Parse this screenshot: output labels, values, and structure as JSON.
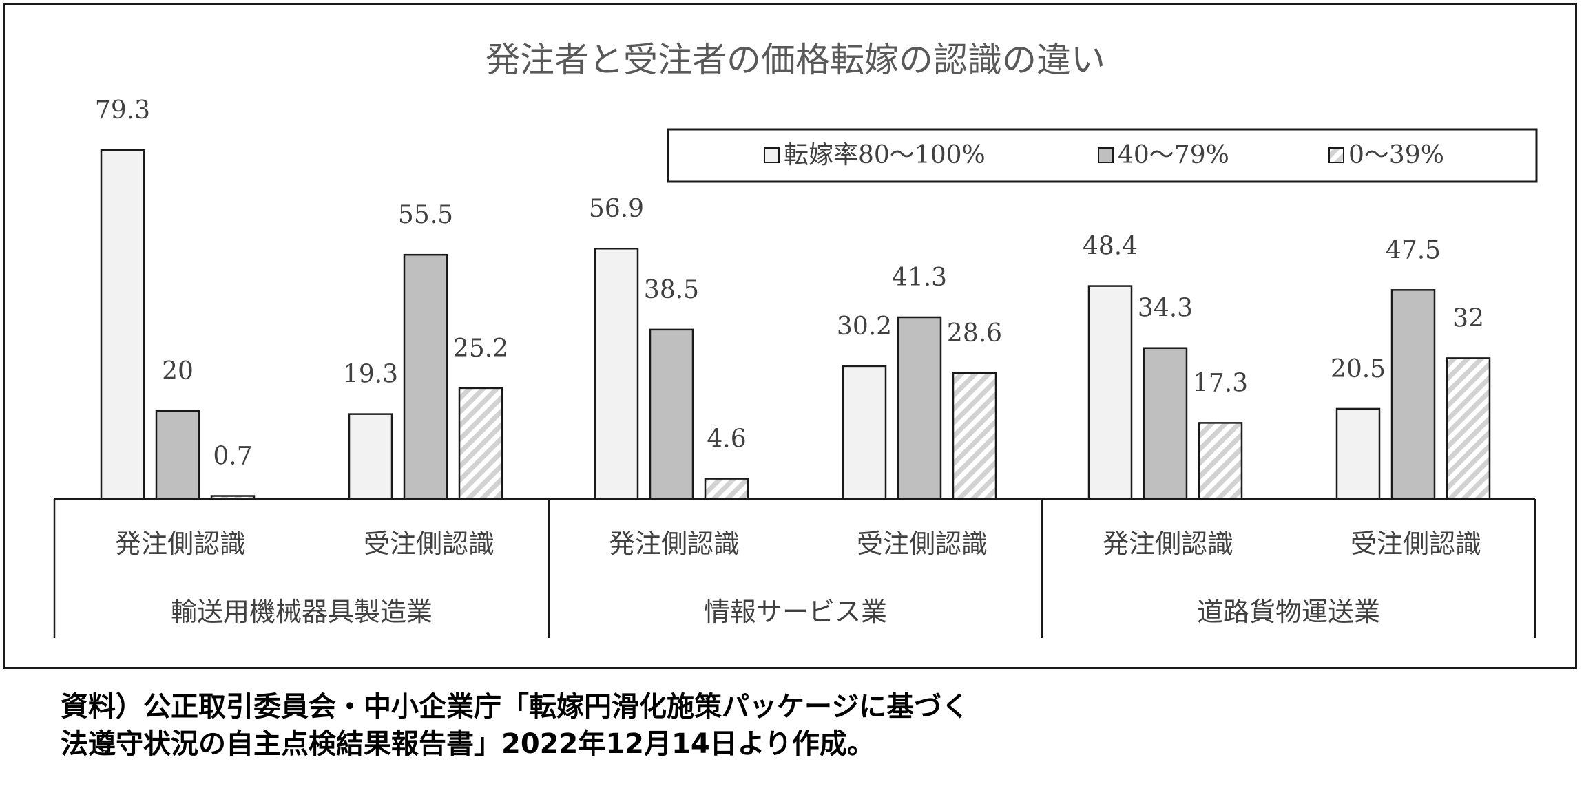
{
  "chart_data": {
    "type": "bar",
    "title": "発注者と受注者の価格転嫁の認識の違い",
    "legend_position": "top-right",
    "grid": false,
    "ylim": [
      0,
      85
    ],
    "legend": [
      {
        "label": "転嫁率80～100%",
        "color": "#f2f2f2",
        "pattern": "none"
      },
      {
        "label": "40～79%",
        "color": "#bfbfbf",
        "pattern": "none"
      },
      {
        "label": "0～39%",
        "color": "#ffffff",
        "pattern": "diagonal-hatch"
      }
    ],
    "groups": [
      {
        "industry": "輸送用機械器具製造業",
        "categories": [
          {
            "label": "発注側認識",
            "values": [
              79.3,
              20,
              0.7
            ],
            "value_labels": [
              "79.3",
              "20",
              "0.7"
            ]
          },
          {
            "label": "受注側認識",
            "values": [
              19.3,
              55.5,
              25.2
            ],
            "value_labels": [
              "19.3",
              "55.5",
              "25.2"
            ]
          }
        ]
      },
      {
        "industry": "情報サービス業",
        "categories": [
          {
            "label": "発注側認識",
            "values": [
              56.9,
              38.5,
              4.6
            ],
            "value_labels": [
              "56.9",
              "38.5",
              "4.6"
            ]
          },
          {
            "label": "受注側認識",
            "values": [
              30.2,
              41.3,
              28.6
            ],
            "value_labels": [
              "30.2",
              "41.3",
              "28.6"
            ]
          }
        ]
      },
      {
        "industry": "道路貨物運送業",
        "categories": [
          {
            "label": "発注側認識",
            "values": [
              48.4,
              34.3,
              17.3
            ],
            "value_labels": [
              "48.4",
              "34.3",
              "17.3"
            ]
          },
          {
            "label": "受注側認識",
            "values": [
              20.5,
              47.5,
              32
            ],
            "value_labels": [
              "20.5",
              "47.5",
              "32"
            ]
          }
        ]
      }
    ]
  },
  "source": {
    "line1": "資料）公正取引委員会・中小企業庁「転嫁円滑化施策パッケージに基づく",
    "line2": "法遵守状況の自主点検結果報告書」2022年12月14日より作成。"
  }
}
